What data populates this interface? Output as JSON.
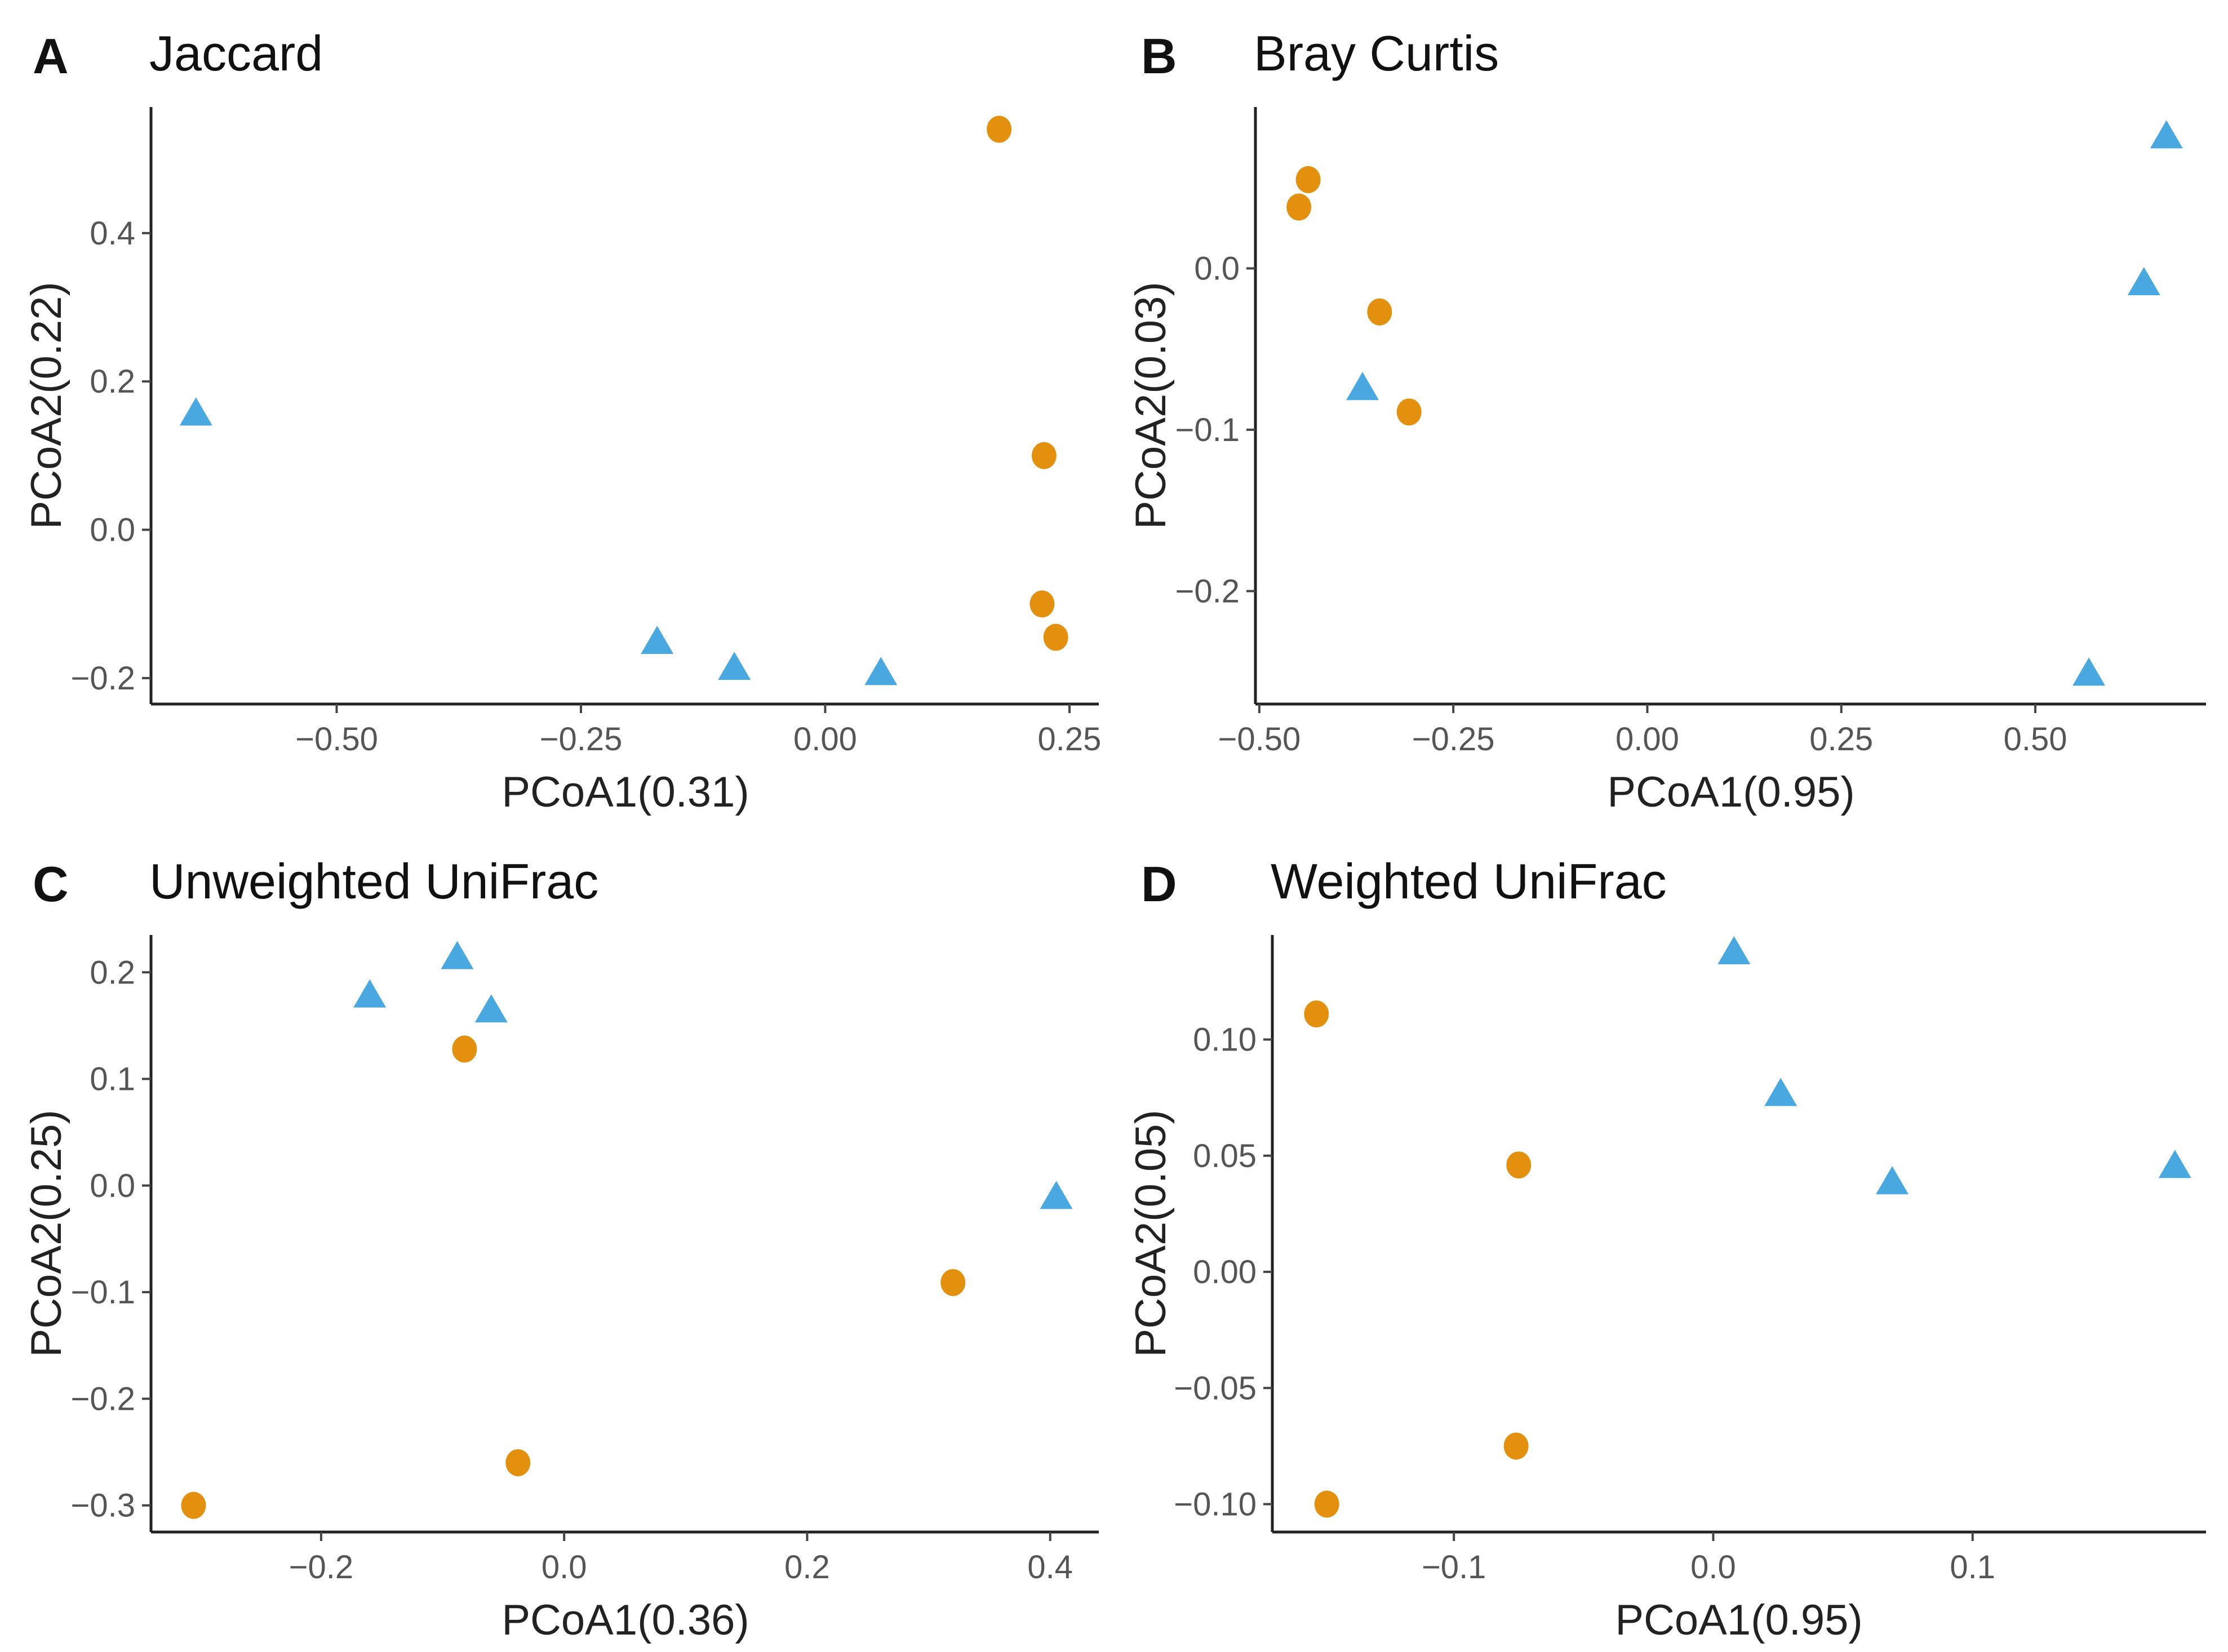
{
  "figure": {
    "colors": {
      "circle": "#e3900f",
      "triangle": "#4aa8e0"
    }
  },
  "chart_data": [
    {
      "type": "scatter",
      "letter": "A",
      "title": "Jaccard",
      "xlabel": "PCoA1(0.31)",
      "ylabel": "PCoA2(0.22)",
      "xlim": [
        -0.69,
        0.28
      ],
      "ylim": [
        -0.235,
        0.57
      ],
      "xticks": [
        -0.5,
        -0.25,
        0.0,
        0.25
      ],
      "xtick_labels": [
        "−0.50",
        "−0.25",
        "0.00",
        "0.25"
      ],
      "yticks": [
        -0.2,
        0.0,
        0.2,
        0.4
      ],
      "ytick_labels": [
        "−0.2",
        "0.0",
        "0.2",
        "0.4"
      ],
      "grid": false,
      "series": [
        {
          "name": "circle",
          "marker": "circle",
          "points": [
            [
              0.178,
              0.54
            ],
            [
              0.224,
              0.1
            ],
            [
              0.222,
              -0.1
            ],
            [
              0.236,
              -0.145
            ]
          ]
        },
        {
          "name": "triangle",
          "marker": "triangle",
          "points": [
            [
              -0.644,
              0.155
            ],
            [
              -0.172,
              -0.153
            ],
            [
              -0.093,
              -0.188
            ],
            [
              0.057,
              -0.195
            ]
          ]
        }
      ]
    },
    {
      "type": "scatter",
      "letter": "B",
      "title": "Bray Curtis",
      "xlabel": "PCoA1(0.95)",
      "ylabel": "PCoA2(0.03)",
      "xlim": [
        -0.505,
        0.72
      ],
      "ylim": [
        -0.27,
        0.1
      ],
      "xticks": [
        -0.5,
        -0.25,
        0.0,
        0.25,
        0.5
      ],
      "xtick_labels": [
        "−0.50",
        "−0.25",
        "0.00",
        "0.25",
        "0.50"
      ],
      "yticks": [
        -0.2,
        -0.1,
        0.0
      ],
      "ytick_labels": [
        "−0.2",
        "−0.1",
        "0.0"
      ],
      "grid": false,
      "series": [
        {
          "name": "circle",
          "marker": "circle",
          "points": [
            [
              -0.437,
              0.055
            ],
            [
              -0.449,
              0.038
            ],
            [
              -0.345,
              -0.027
            ],
            [
              -0.307,
              -0.089
            ]
          ]
        },
        {
          "name": "triangle",
          "marker": "triangle",
          "points": [
            [
              0.669,
              0.081
            ],
            [
              0.64,
              -0.01
            ],
            [
              -0.367,
              -0.075
            ],
            [
              0.569,
              -0.252
            ]
          ]
        }
      ]
    },
    {
      "type": "scatter",
      "letter": "C",
      "title": "Unweighted UniFrac",
      "xlabel": "PCoA1(0.36)",
      "ylabel": "PCoA2(0.25)",
      "xlim": [
        -0.34,
        0.44
      ],
      "ylim": [
        -0.325,
        0.235
      ],
      "xticks": [
        -0.2,
        0.0,
        0.2,
        0.4
      ],
      "xtick_labels": [
        "−0.2",
        "0.0",
        "0.2",
        "0.4"
      ],
      "yticks": [
        -0.3,
        -0.2,
        -0.1,
        0.0,
        0.1,
        0.2
      ],
      "ytick_labels": [
        "−0.3",
        "−0.2",
        "−0.1",
        "0.0",
        "0.1",
        "0.2"
      ],
      "grid": false,
      "series": [
        {
          "name": "circle",
          "marker": "circle",
          "points": [
            [
              -0.082,
              0.128
            ],
            [
              0.32,
              -0.091
            ],
            [
              -0.038,
              -0.26
            ],
            [
              -0.305,
              -0.3
            ]
          ]
        },
        {
          "name": "triangle",
          "marker": "triangle",
          "points": [
            [
              -0.16,
              0.177
            ],
            [
              -0.088,
              0.213
            ],
            [
              -0.06,
              0.163
            ],
            [
              0.405,
              -0.012
            ]
          ]
        }
      ]
    },
    {
      "type": "scatter",
      "letter": "D",
      "title": "Weighted UniFrac",
      "xlabel": "PCoA1(0.95)",
      "ylabel": "PCoA2(0.05)",
      "xlim": [
        -0.17,
        0.19
      ],
      "ylim": [
        -0.112,
        0.145
      ],
      "xticks": [
        -0.1,
        0.0,
        0.1
      ],
      "xtick_labels": [
        "−0.1",
        "0.0",
        "0.1"
      ],
      "yticks": [
        -0.1,
        -0.05,
        0.0,
        0.05,
        0.1
      ],
      "ytick_labels": [
        "−0.10",
        "−0.05",
        "0.00",
        "0.05",
        "0.10"
      ],
      "grid": false,
      "series": [
        {
          "name": "circle",
          "marker": "circle",
          "points": [
            [
              -0.153,
              0.111
            ],
            [
              -0.075,
              0.046
            ],
            [
              -0.076,
              -0.075
            ],
            [
              -0.149,
              -0.1
            ]
          ]
        },
        {
          "name": "triangle",
          "marker": "triangle",
          "points": [
            [
              0.008,
              0.137
            ],
            [
              0.026,
              0.076
            ],
            [
              0.069,
              0.038
            ],
            [
              0.178,
              0.045
            ]
          ]
        }
      ]
    }
  ]
}
